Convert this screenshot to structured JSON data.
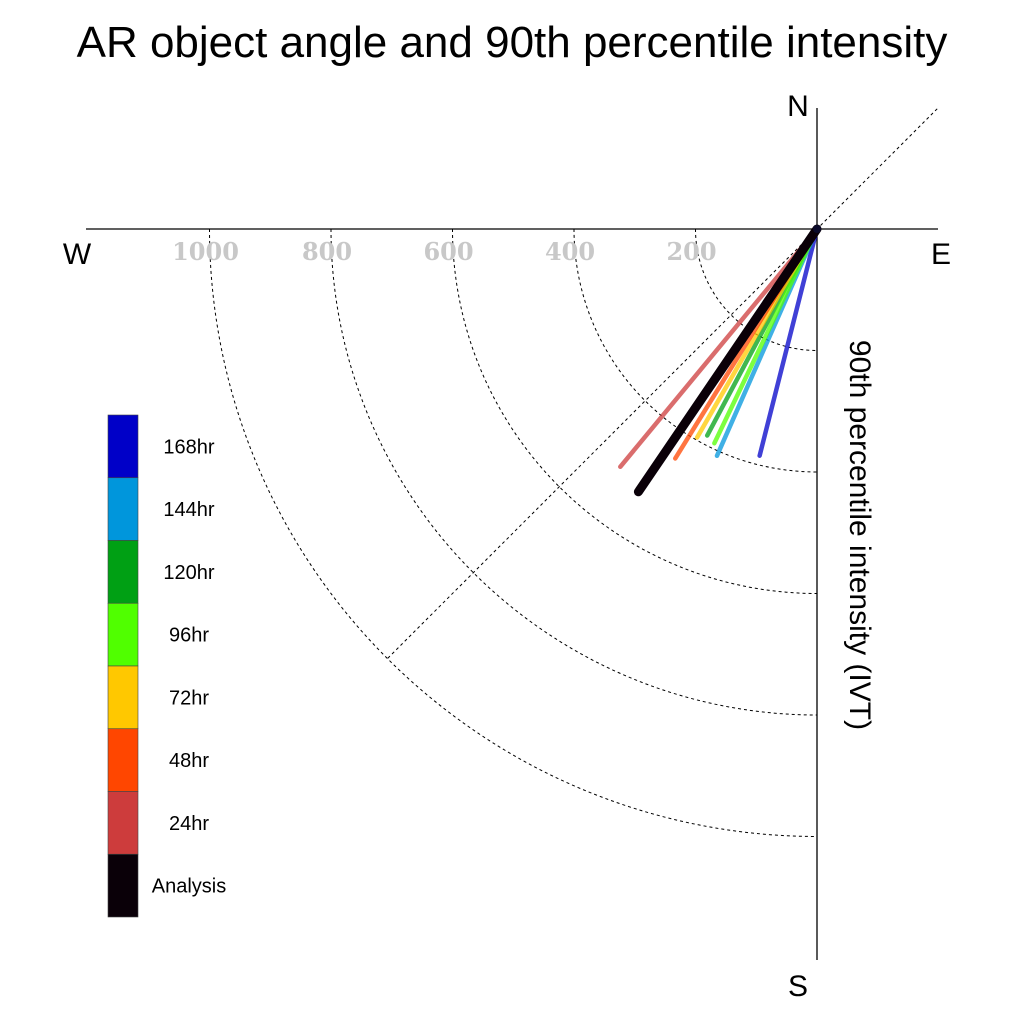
{
  "chart_data": {
    "type": "polar-vector",
    "title": "AR object angle and 90th percentile intensity",
    "ylabel": "90th percentile intensity (IVT)",
    "compass": {
      "north": "N",
      "south": "S",
      "east": "E",
      "west": "W"
    },
    "rings": [
      200,
      400,
      600,
      800,
      1000
    ],
    "ring_labels": [
      "200",
      "400",
      "600",
      "800",
      "1000"
    ],
    "radial_max": 1170,
    "vectors": [
      {
        "label": "168hr",
        "color": "#0000c8",
        "angle_from_south_deg": 14.2,
        "intensity": 385
      },
      {
        "label": "144hr",
        "color": "#0096dc",
        "angle_from_south_deg": 23.8,
        "intensity": 408
      },
      {
        "label": "120hr",
        "color": "#00a014",
        "angle_from_south_deg": 28.0,
        "intensity": 385
      },
      {
        "label": "96hr",
        "color": "#50ff00",
        "angle_from_south_deg": 25.6,
        "intensity": 391
      },
      {
        "label": "72hr",
        "color": "#ffc800",
        "angle_from_south_deg": 29.9,
        "intensity": 396
      },
      {
        "label": "48hr",
        "color": "#ff4600",
        "angle_from_south_deg": 31.7,
        "intensity": 444
      },
      {
        "label": "24hr",
        "color": "#cd3c3c",
        "angle_from_south_deg": 39.6,
        "intensity": 508
      },
      {
        "label": "Analysis",
        "color": "#0a0008",
        "angle_from_south_deg": 34.2,
        "intensity": 523
      }
    ],
    "legend": {
      "items": [
        {
          "label": "168hr",
          "color": "#0000c8"
        },
        {
          "label": "144hr",
          "color": "#0096dc"
        },
        {
          "label": "120hr",
          "color": "#00a014"
        },
        {
          "label": "96hr",
          "color": "#50ff00"
        },
        {
          "label": "72hr",
          "color": "#ffc800"
        },
        {
          "label": "48hr",
          "color": "#ff4600"
        },
        {
          "label": "24hr",
          "color": "#cd3c3c"
        },
        {
          "label": "Analysis",
          "color": "#0a0008"
        }
      ]
    },
    "grid": true
  }
}
